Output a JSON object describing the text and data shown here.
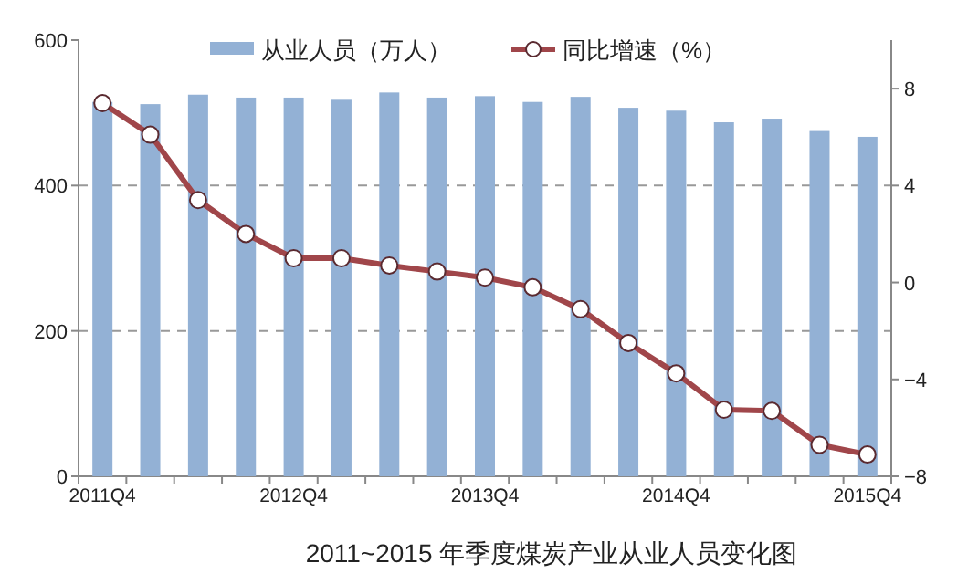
{
  "chart_data": {
    "type": "bar",
    "title": "2011~2015 年季度煤炭产业从业人员变化图",
    "categories": [
      "2011Q4",
      null,
      null,
      null,
      "2012Q4",
      null,
      null,
      null,
      "2013Q4",
      null,
      null,
      null,
      "2014Q4",
      null,
      null,
      null,
      "2015Q4"
    ],
    "series": [
      {
        "name": "从业人员（万人）",
        "color": "#93b1d5",
        "values": [
          515,
          512,
          525,
          521,
          521,
          518,
          528,
          521,
          523,
          515,
          522,
          507,
          503,
          487,
          492,
          475,
          467
        ]
      },
      {
        "name": "同比增速（%）",
        "type": "line",
        "axis": "y2",
        "color": "#a0464a",
        "marker": "circle",
        "values": [
          7.4,
          6.1,
          3.4,
          2.0,
          1.0,
          1.0,
          0.7,
          0.45,
          0.2,
          -0.2,
          -1.1,
          -2.5,
          -3.75,
          -5.25,
          -5.3,
          -6.7,
          -7.1
        ]
      }
    ],
    "ylim": [
      0,
      600
    ],
    "yticks": [
      0,
      200,
      400,
      600
    ],
    "y2lim": [
      -8,
      10
    ],
    "y2ticks": [
      -8,
      -4,
      0,
      4,
      8
    ],
    "grid": "y",
    "legend": "top"
  }
}
